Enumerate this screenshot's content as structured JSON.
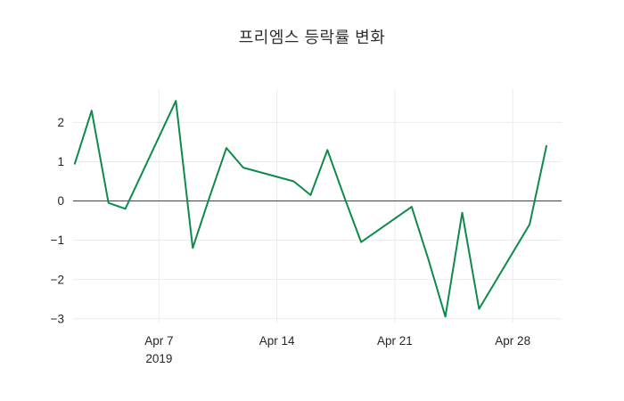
{
  "title": "프리엠스 등락률 변화",
  "chart_data": {
    "type": "line",
    "title": "프리엠스 등락률 변화",
    "x_axis": "April 2019 (day of month)",
    "series": [
      {
        "name": "등락률",
        "color": "#0e8a4b",
        "x": [
          2,
          3,
          4,
          5,
          8,
          9,
          10,
          11,
          12,
          15,
          16,
          17,
          18,
          19,
          22,
          23,
          24,
          25,
          26,
          29,
          30
        ],
        "values": [
          0.95,
          2.3,
          -0.05,
          -0.2,
          2.55,
          -1.2,
          0.1,
          1.35,
          0.85,
          0.5,
          0.15,
          1.3,
          0.1,
          -1.05,
          -0.15,
          -1.5,
          -2.95,
          -0.3,
          -2.75,
          -0.6,
          1.4
        ]
      }
    ],
    "xlim": [
      1.9,
      30.9
    ],
    "ylim": [
      -3.1,
      2.85
    ],
    "yticks": [
      2,
      1,
      0,
      -1,
      -2,
      -3
    ],
    "xticks": [
      {
        "pos": 7,
        "label": "Apr 7",
        "sublabel": "2019"
      },
      {
        "pos": 14,
        "label": "Apr 14",
        "sublabel": ""
      },
      {
        "pos": 21,
        "label": "Apr 21",
        "sublabel": ""
      },
      {
        "pos": 28,
        "label": "Apr 28",
        "sublabel": ""
      }
    ],
    "zeroline": true,
    "zeroline_color": "#444444",
    "grid": "faint",
    "grid_color": "#ebebeb",
    "legend": "none",
    "background": "#ffffff"
  }
}
